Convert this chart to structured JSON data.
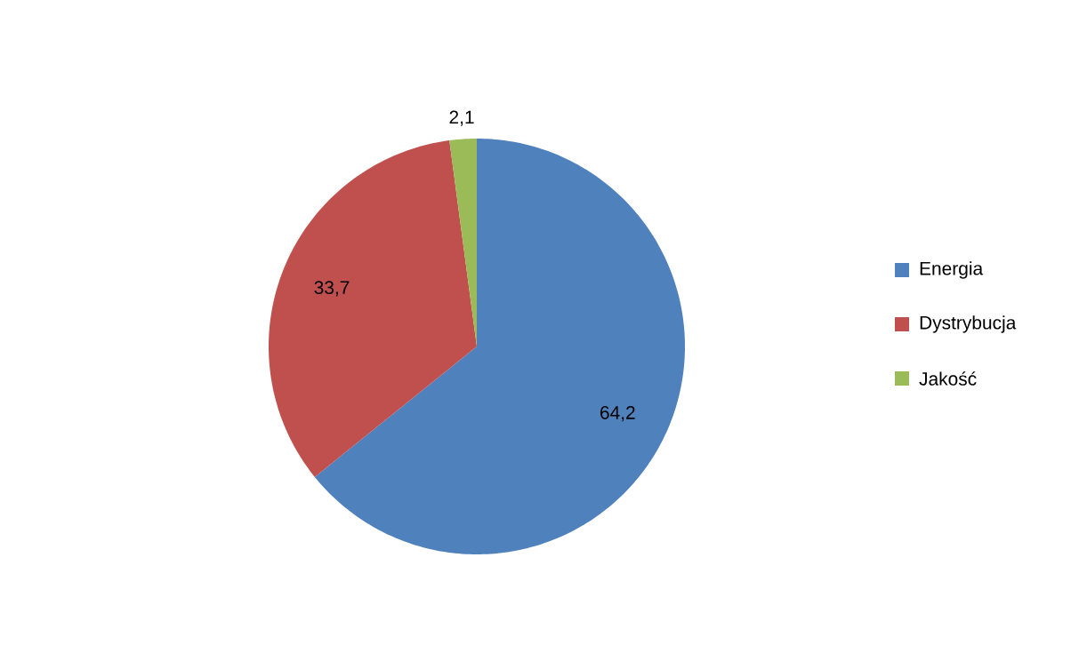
{
  "chart_data": {
    "type": "pie",
    "categories": [
      "Energia",
      "Dystrybucja",
      "Jakość"
    ],
    "values": [
      64.2,
      33.7,
      2.1
    ],
    "colors": [
      "#4f81bd",
      "#c0504d",
      "#9bbb59"
    ],
    "value_labels": [
      "64,2",
      "33,7",
      "2,1"
    ],
    "legend": "right"
  }
}
